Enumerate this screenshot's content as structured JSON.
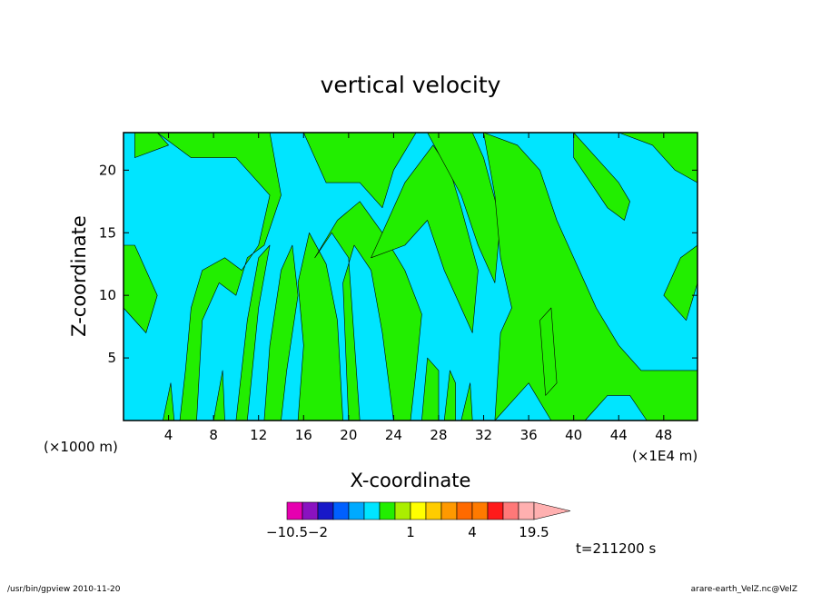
{
  "chart_data": {
    "type": "contour",
    "title": "vertical velocity",
    "xlabel": "X-coordinate",
    "ylabel": "Z-coordinate",
    "x_units_left": "(×1000 m)",
    "x_units_right": "(×1E4 m)",
    "x_ticks": [
      "4",
      "8",
      "12",
      "16",
      "20",
      "24",
      "28",
      "32",
      "36",
      "40",
      "44",
      "48"
    ],
    "x_tick_values": [
      4,
      8,
      12,
      16,
      20,
      24,
      28,
      32,
      36,
      40,
      44,
      48
    ],
    "y_ticks": [
      "5",
      "10",
      "15",
      "20"
    ],
    "y_tick_values": [
      5,
      10,
      15,
      20
    ],
    "xlim": [
      0,
      51
    ],
    "ylim": [
      0,
      23
    ],
    "background_level_color": "#00e5ff",
    "positive_level_color": "#22ee00",
    "colorbar": {
      "labels": [
        "−10.5",
        "−2",
        "1",
        "4",
        "19.5"
      ],
      "levels": [
        -10.5,
        -6.5,
        -2,
        -1.5,
        -1,
        -0.5,
        0,
        0.5,
        1,
        1.5,
        2,
        2.5,
        4,
        8,
        12,
        16,
        19.5
      ],
      "colors": [
        "#e600b0",
        "#8a12c0",
        "#1818c8",
        "#0060ff",
        "#00aaff",
        "#00e5ff",
        "#22ee00",
        "#aaee00",
        "#ffff00",
        "#ffcc00",
        "#ff9900",
        "#ff6a00",
        "#ff7a00",
        "#ff1a1a",
        "#ff7878",
        "#ffb0b0"
      ]
    },
    "time_label": "t=211200 s",
    "footer_left": "/usr/bin/gpview  2010-11-20",
    "footer_right": "arare-earth_VelZ.nc@VelZ"
  }
}
